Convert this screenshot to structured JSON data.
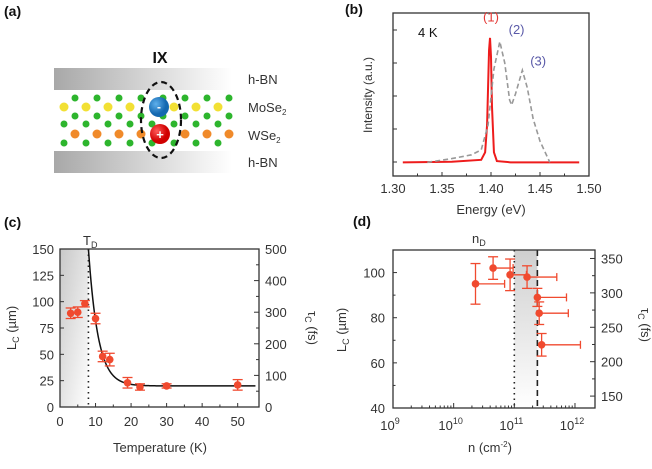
{
  "colors": {
    "data": "#f04a2f",
    "spectrum1": "#ee1c1c",
    "spectrum23": "#999999",
    "label1": "#e53935",
    "label23": "#5a5aa8",
    "axis": "#333333"
  },
  "panels": {
    "a": "(a)",
    "b": "(b)",
    "c": "(c)",
    "d": "(d)"
  },
  "diagram": {
    "title": "IX",
    "layers": [
      "h-BN",
      "MoSe",
      "WSe",
      "h-BN"
    ],
    "subscript": "2",
    "electron": "-",
    "hole": "+"
  },
  "chart_data": [
    {
      "id": "b",
      "type": "line",
      "title": "",
      "annotation": "4 K",
      "xlabel": "Energy (eV)",
      "ylabel": "Intensity (a.u.)",
      "xlim": [
        1.3,
        1.5
      ],
      "ylim": [
        -0.11,
        1.2
      ],
      "xticks": [
        "1.30",
        "1.35",
        "1.40",
        "1.45",
        "1.50"
      ],
      "series": [
        {
          "name": "(1)",
          "style": "solid",
          "x": [
            1.31,
            1.36,
            1.39,
            1.394,
            1.396,
            1.398,
            1.399,
            1.4,
            1.401,
            1.403,
            1.406,
            1.42,
            1.49
          ],
          "y": [
            0,
            0.005,
            0.02,
            0.08,
            0.3,
            0.9,
            1.0,
            0.85,
            0.45,
            0.08,
            0.01,
            0,
            0
          ]
        },
        {
          "name": "(2)/(3)",
          "style": "dashed",
          "x": [
            1.335,
            1.36,
            1.38,
            1.39,
            1.397,
            1.403,
            1.409,
            1.414,
            1.419,
            1.421,
            1.425,
            1.432,
            1.437,
            1.443,
            1.45,
            1.46
          ],
          "y": [
            0,
            0.03,
            0.06,
            0.1,
            0.3,
            0.75,
            0.97,
            0.8,
            0.5,
            0.46,
            0.55,
            0.74,
            0.6,
            0.35,
            0.17,
            0
          ]
        }
      ],
      "peak_labels": [
        {
          "text": "(1)",
          "x": 1.4,
          "y": 1.13
        },
        {
          "text": "(2)",
          "x": 1.418,
          "y": 1.03
        },
        {
          "text": "(3)",
          "x": 1.44,
          "y": 0.78
        }
      ]
    },
    {
      "id": "c",
      "type": "scatter",
      "xlabel": "Temperature (K)",
      "ylabel": "L",
      "ylabel_sub": "C",
      "ylabel_unit": " (µm)",
      "y2label": "τ",
      "y2label_sub": "C",
      "y2label_unit": " (fs)",
      "xlim": [
        0,
        56
      ],
      "ylim": [
        0,
        150
      ],
      "y2lim": [
        0,
        500
      ],
      "xticks": [
        0,
        10,
        20,
        30,
        40,
        50
      ],
      "yticks": [
        0,
        25,
        50,
        75,
        100,
        125,
        150
      ],
      "y2ticks": [
        0,
        100,
        200,
        300,
        400,
        500
      ],
      "marker_label": "T",
      "marker_label_sub": "D",
      "marker_x": 8,
      "points": [
        {
          "x": 3,
          "y": 89,
          "err": 5
        },
        {
          "x": 5,
          "y": 90,
          "err": 5
        },
        {
          "x": 7,
          "y": 98,
          "err": 3
        },
        {
          "x": 10,
          "y": 84,
          "err": 5
        },
        {
          "x": 12,
          "y": 48,
          "err": 5
        },
        {
          "x": 14,
          "y": 45,
          "err": 6
        },
        {
          "x": 19,
          "y": 23,
          "err": 5
        },
        {
          "x": 22.5,
          "y": 19,
          "err": 3
        },
        {
          "x": 30,
          "y": 20,
          "err": 2
        },
        {
          "x": 50,
          "y": 21,
          "err": 5
        }
      ],
      "fit": {
        "x0": 8,
        "offset": 20,
        "amplitude": 130,
        "decay": 2.7
      }
    },
    {
      "id": "d",
      "type": "scatter",
      "xscale": "log",
      "xlabel": "n (cm",
      "xlabel_sup": "-2",
      "xlabel_end": ")",
      "ylabel": "L",
      "ylabel_sub": "C",
      "ylabel_unit": " (µm)",
      "y2label": "τ",
      "y2label_sub": "C",
      "y2label_unit": " (fs)",
      "xlim_log10": [
        9,
        12.33
      ],
      "ylim": [
        40,
        110
      ],
      "y2lim": [
        132.7,
        362.3
      ],
      "xticks": [
        {
          "b": "10",
          "e": "9"
        },
        {
          "b": "10",
          "e": "10"
        },
        {
          "b": "10",
          "e": "11"
        },
        {
          "b": "10",
          "e": "12"
        }
      ],
      "yticks": [
        40,
        60,
        80,
        100
      ],
      "y2ticks": [
        150,
        200,
        250,
        300,
        350
      ],
      "marker_label": "n",
      "marker_label_sub": "D",
      "dotted_log10": 11.0,
      "dashed_log10": 11.38,
      "points": [
        {
          "log10x": 10.36,
          "y": 95,
          "err": 9,
          "xhi": 10.84
        },
        {
          "log10x": 10.65,
          "y": 102,
          "err": 5,
          "xhi": 10.98
        },
        {
          "log10x": 10.93,
          "y": 99,
          "err": 7,
          "xhi": 11.2
        },
        {
          "log10x": 11.21,
          "y": 98,
          "err": 5,
          "xhi": 11.7
        },
        {
          "log10x": 11.38,
          "y": 89,
          "err": 4,
          "xhi": 11.86
        },
        {
          "log10x": 11.41,
          "y": 82,
          "err": 5,
          "xhi": 11.89
        },
        {
          "log10x": 11.45,
          "y": 68,
          "err": 5,
          "xhi": 12.09
        }
      ]
    }
  ]
}
